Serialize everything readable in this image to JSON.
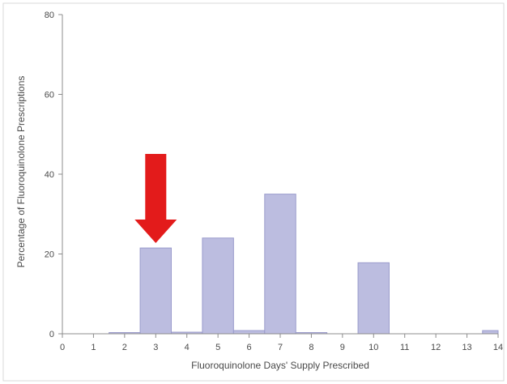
{
  "chart_data": {
    "type": "bar",
    "title": "",
    "xlabel": "Fluoroquinolone Days' Supply Prescribed",
    "ylabel": "Percentage of Fluoroquinolone Prescriptions",
    "xlim": [
      0,
      14
    ],
    "ylim": [
      0,
      80
    ],
    "x_ticks": [
      "0",
      "1",
      "2",
      "3",
      "4",
      "5",
      "6",
      "7",
      "8",
      "9",
      "10",
      "11",
      "12",
      "13",
      "14"
    ],
    "y_ticks": [
      "0",
      "20",
      "40",
      "60",
      "80"
    ],
    "bars": [
      {
        "x": 2,
        "value": 0.3
      },
      {
        "x": 3,
        "value": 21.5
      },
      {
        "x": 4,
        "value": 0.4
      },
      {
        "x": 5,
        "value": 24
      },
      {
        "x": 6,
        "value": 0.8
      },
      {
        "x": 7,
        "value": 35
      },
      {
        "x": 8,
        "value": 0.3
      },
      {
        "x": 10,
        "value": 17.8
      },
      {
        "x": 14,
        "value": 0.8
      }
    ],
    "grid": false,
    "legend": "none",
    "annotation": {
      "type": "arrow",
      "target_x": 3,
      "color": "#e31b1b"
    },
    "colors": {
      "bar_fill": "#bcbde0",
      "bar_stroke": "#9a9bcc",
      "axis": "#8c8c8c",
      "frame": "#d9d9d9"
    }
  }
}
